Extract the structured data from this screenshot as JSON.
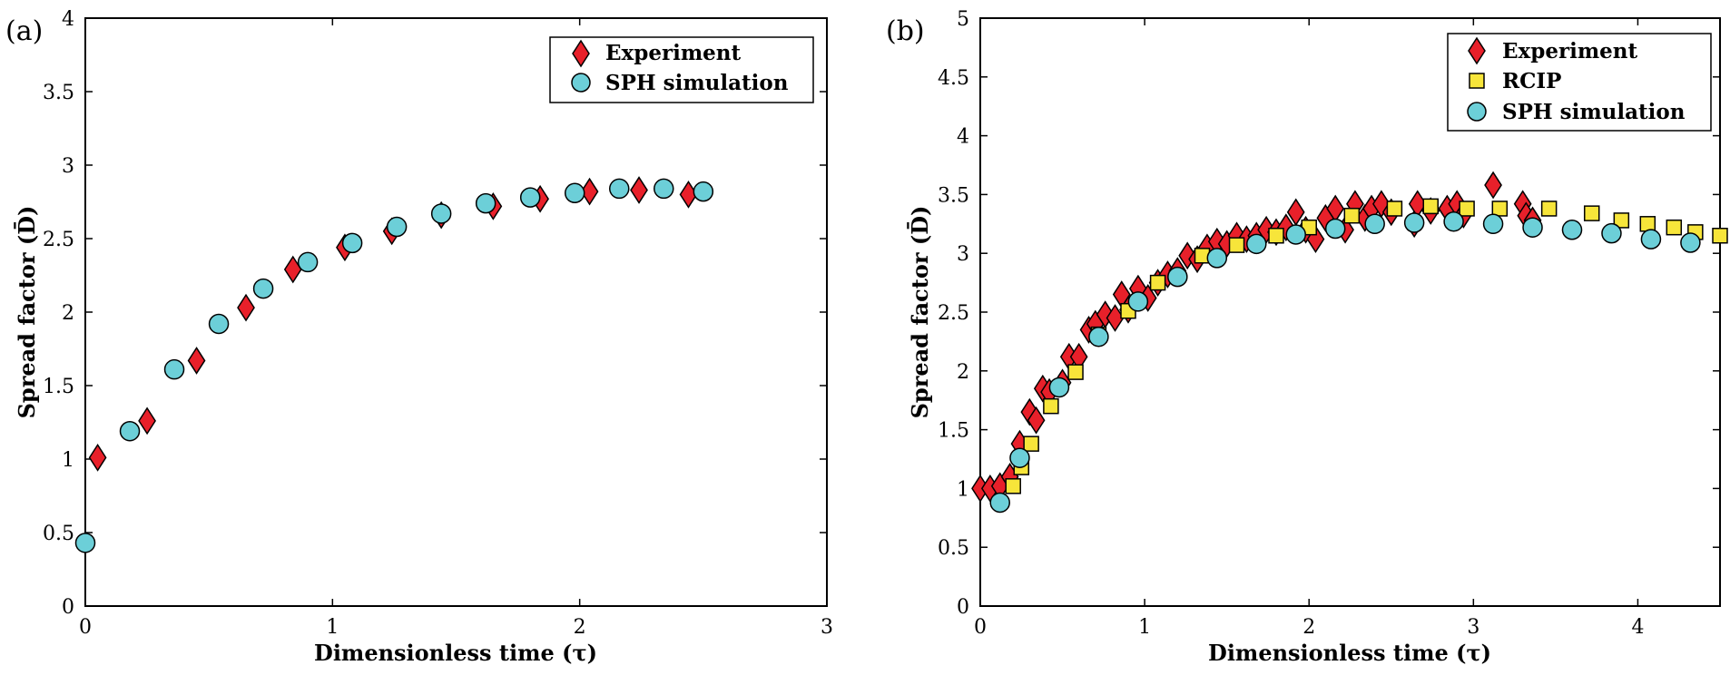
{
  "chart_data": [
    {
      "type": "scatter",
      "panel_label": "(a)",
      "xlabel": "Dimensionless time (τ)",
      "ylabel": "Spread factor (D̄)",
      "xlim": [
        0,
        3
      ],
      "ylim": [
        0,
        4
      ],
      "xticks": [
        "0",
        "1",
        "2",
        "3"
      ],
      "yticks": [
        "0",
        "0.5",
        "1",
        "1.5",
        "2",
        "2.5",
        "3",
        "3.5",
        "4"
      ],
      "grid": false,
      "legend_position": "top-right",
      "series": [
        {
          "name": "Experiment",
          "marker": "diamond",
          "color": "#e8202a",
          "points": [
            [
              0.05,
              1.01
            ],
            [
              0.25,
              1.26
            ],
            [
              0.45,
              1.67
            ],
            [
              0.65,
              2.03
            ],
            [
              0.84,
              2.29
            ],
            [
              1.05,
              2.44
            ],
            [
              1.24,
              2.55
            ],
            [
              1.44,
              2.66
            ],
            [
              1.65,
              2.72
            ],
            [
              1.84,
              2.77
            ],
            [
              2.04,
              2.82
            ],
            [
              2.24,
              2.83
            ],
            [
              2.44,
              2.8
            ]
          ]
        },
        {
          "name": "SPH simulation",
          "marker": "circle",
          "color": "#6ccfd8",
          "points": [
            [
              0.0,
              0.43
            ],
            [
              0.18,
              1.19
            ],
            [
              0.36,
              1.61
            ],
            [
              0.54,
              1.92
            ],
            [
              0.72,
              2.16
            ],
            [
              0.9,
              2.34
            ],
            [
              1.08,
              2.47
            ],
            [
              1.26,
              2.58
            ],
            [
              1.44,
              2.67
            ],
            [
              1.62,
              2.74
            ],
            [
              1.8,
              2.78
            ],
            [
              1.98,
              2.81
            ],
            [
              2.16,
              2.84
            ],
            [
              2.34,
              2.84
            ],
            [
              2.5,
              2.82
            ]
          ]
        }
      ]
    },
    {
      "type": "scatter",
      "panel_label": "(b)",
      "xlabel": "Dimensionless time (τ)",
      "ylabel": "Spread factor (D̄)",
      "xlim": [
        0,
        4.5
      ],
      "ylim": [
        0,
        5
      ],
      "xticks": [
        "0",
        "1",
        "2",
        "3",
        "4"
      ],
      "yticks": [
        "0",
        "0.5",
        "1",
        "1.5",
        "2",
        "2.5",
        "3",
        "3.5",
        "4",
        "4.5",
        "5"
      ],
      "grid": false,
      "legend_position": "top-right",
      "series": [
        {
          "name": "Experiment",
          "marker": "diamond",
          "color": "#e8202a",
          "points": [
            [
              0.0,
              1.0
            ],
            [
              0.06,
              1.0
            ],
            [
              0.12,
              1.02
            ],
            [
              0.18,
              1.1
            ],
            [
              0.24,
              1.38
            ],
            [
              0.3,
              1.65
            ],
            [
              0.34,
              1.58
            ],
            [
              0.38,
              1.85
            ],
            [
              0.42,
              1.82
            ],
            [
              0.5,
              1.9
            ],
            [
              0.54,
              2.12
            ],
            [
              0.6,
              2.12
            ],
            [
              0.66,
              2.35
            ],
            [
              0.7,
              2.4
            ],
            [
              0.76,
              2.48
            ],
            [
              0.82,
              2.45
            ],
            [
              0.86,
              2.65
            ],
            [
              0.9,
              2.52
            ],
            [
              0.96,
              2.7
            ],
            [
              1.02,
              2.62
            ],
            [
              1.08,
              2.75
            ],
            [
              1.14,
              2.82
            ],
            [
              1.2,
              2.85
            ],
            [
              1.26,
              2.98
            ],
            [
              1.32,
              2.95
            ],
            [
              1.38,
              3.05
            ],
            [
              1.44,
              3.1
            ],
            [
              1.5,
              3.08
            ],
            [
              1.56,
              3.15
            ],
            [
              1.62,
              3.12
            ],
            [
              1.68,
              3.15
            ],
            [
              1.74,
              3.2
            ],
            [
              1.8,
              3.18
            ],
            [
              1.86,
              3.22
            ],
            [
              1.92,
              3.35
            ],
            [
              1.98,
              3.2
            ],
            [
              2.04,
              3.12
            ],
            [
              2.1,
              3.3
            ],
            [
              2.16,
              3.38
            ],
            [
              2.22,
              3.2
            ],
            [
              2.28,
              3.42
            ],
            [
              2.34,
              3.3
            ],
            [
              2.38,
              3.38
            ],
            [
              2.44,
              3.42
            ],
            [
              2.5,
              3.35
            ],
            [
              2.64,
              3.25
            ],
            [
              2.66,
              3.42
            ],
            [
              2.74,
              3.36
            ],
            [
              2.84,
              3.38
            ],
            [
              2.9,
              3.42
            ],
            [
              2.94,
              3.33
            ],
            [
              3.12,
              3.58
            ],
            [
              3.3,
              3.42
            ],
            [
              3.32,
              3.32
            ],
            [
              3.36,
              3.28
            ]
          ]
        },
        {
          "name": "RCIP",
          "marker": "square",
          "color": "#f7e53a",
          "points": [
            [
              0.2,
              1.02
            ],
            [
              0.25,
              1.18
            ],
            [
              0.31,
              1.38
            ],
            [
              0.43,
              1.7
            ],
            [
              0.58,
              1.99
            ],
            [
              0.72,
              2.31
            ],
            [
              0.9,
              2.51
            ],
            [
              1.08,
              2.75
            ],
            [
              1.35,
              2.98
            ],
            [
              1.56,
              3.07
            ],
            [
              1.8,
              3.15
            ],
            [
              2.0,
              3.22
            ],
            [
              2.26,
              3.32
            ],
            [
              2.52,
              3.38
            ],
            [
              2.74,
              3.4
            ],
            [
              2.96,
              3.38
            ],
            [
              3.16,
              3.38
            ],
            [
              3.46,
              3.38
            ],
            [
              3.72,
              3.34
            ],
            [
              3.9,
              3.28
            ],
            [
              4.06,
              3.25
            ],
            [
              4.22,
              3.22
            ],
            [
              4.35,
              3.18
            ],
            [
              4.5,
              3.15
            ]
          ]
        },
        {
          "name": "SPH simulation",
          "marker": "circle",
          "color": "#6ccfd8",
          "points": [
            [
              0.12,
              0.88
            ],
            [
              0.24,
              1.26
            ],
            [
              0.48,
              1.86
            ],
            [
              0.72,
              2.29
            ],
            [
              0.96,
              2.59
            ],
            [
              1.2,
              2.8
            ],
            [
              1.44,
              2.96
            ],
            [
              1.68,
              3.08
            ],
            [
              1.92,
              3.16
            ],
            [
              2.16,
              3.21
            ],
            [
              2.4,
              3.25
            ],
            [
              2.64,
              3.26
            ],
            [
              2.88,
              3.27
            ],
            [
              3.12,
              3.25
            ],
            [
              3.36,
              3.22
            ],
            [
              3.6,
              3.2
            ],
            [
              3.84,
              3.17
            ],
            [
              4.08,
              3.12
            ],
            [
              4.32,
              3.09
            ]
          ]
        }
      ]
    }
  ]
}
